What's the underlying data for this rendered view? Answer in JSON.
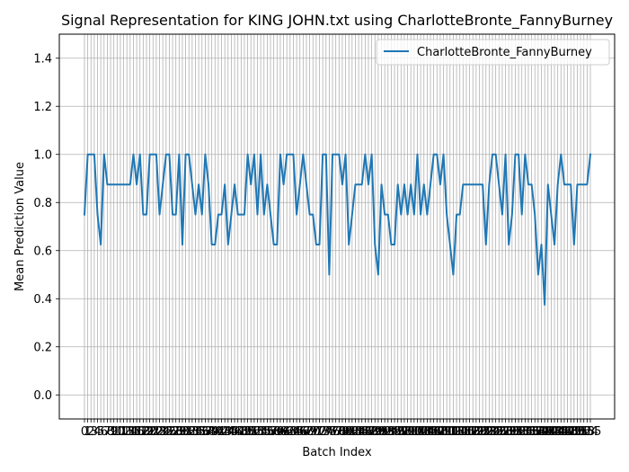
{
  "chart_data": {
    "type": "line",
    "title": "Signal Representation for KING JOHN.txt using CharlotteBronte_FannyBurney",
    "xlabel": "Batch Index",
    "ylabel": "Mean Prediction Value",
    "ylim": [
      -0.1,
      1.5
    ],
    "yticks": [
      "0.0",
      "0.2",
      "0.4",
      "0.6",
      "0.8",
      "1.0",
      "1.2",
      "1.4"
    ],
    "grid": true,
    "legend_position": "top-right",
    "series": [
      {
        "name": "CharlotteBronte_FannyBurney",
        "color": "#1f77b4",
        "values": [
          0.75,
          1.0,
          1.0,
          1.0,
          0.75,
          0.625,
          1.0,
          0.875,
          0.875,
          0.875,
          0.875,
          0.875,
          0.875,
          0.875,
          0.875,
          1.0,
          0.875,
          1.0,
          0.75,
          0.75,
          1.0,
          1.0,
          1.0,
          0.75,
          0.875,
          1.0,
          1.0,
          0.75,
          0.75,
          1.0,
          0.625,
          1.0,
          1.0,
          0.875,
          0.75,
          0.875,
          0.75,
          1.0,
          0.875,
          0.625,
          0.625,
          0.75,
          0.75,
          0.875,
          0.625,
          0.75,
          0.875,
          0.75,
          0.75,
          0.75,
          1.0,
          0.875,
          1.0,
          0.75,
          1.0,
          0.75,
          0.875,
          0.75,
          0.625,
          0.625,
          1.0,
          0.875,
          1.0,
          1.0,
          1.0,
          0.75,
          0.875,
          1.0,
          0.875,
          0.75,
          0.75,
          0.625,
          0.625,
          1.0,
          1.0,
          0.5,
          1.0,
          1.0,
          1.0,
          0.875,
          1.0,
          0.625,
          0.75,
          0.875,
          0.875,
          0.875,
          1.0,
          0.875,
          1.0,
          0.625,
          0.5,
          0.875,
          0.75,
          0.75,
          0.625,
          0.625,
          0.875,
          0.75,
          0.875,
          0.75,
          0.875,
          0.75,
          1.0,
          0.75,
          0.875,
          0.75,
          0.875,
          1.0,
          1.0,
          0.875,
          1.0,
          0.75,
          0.625,
          0.5,
          0.75,
          0.75,
          0.875,
          0.875,
          0.875,
          0.875,
          0.875,
          0.875,
          0.875,
          0.625,
          0.875,
          1.0,
          1.0,
          0.875,
          0.75,
          1.0,
          0.625,
          0.75,
          1.0,
          1.0,
          0.75,
          1.0,
          0.875,
          0.875,
          0.75,
          0.5,
          0.625,
          0.375,
          0.875,
          0.75,
          0.625,
          0.875,
          1.0,
          0.875,
          0.875,
          0.875,
          0.625,
          0.875,
          0.875,
          0.875,
          0.875,
          1.0
        ]
      }
    ]
  }
}
